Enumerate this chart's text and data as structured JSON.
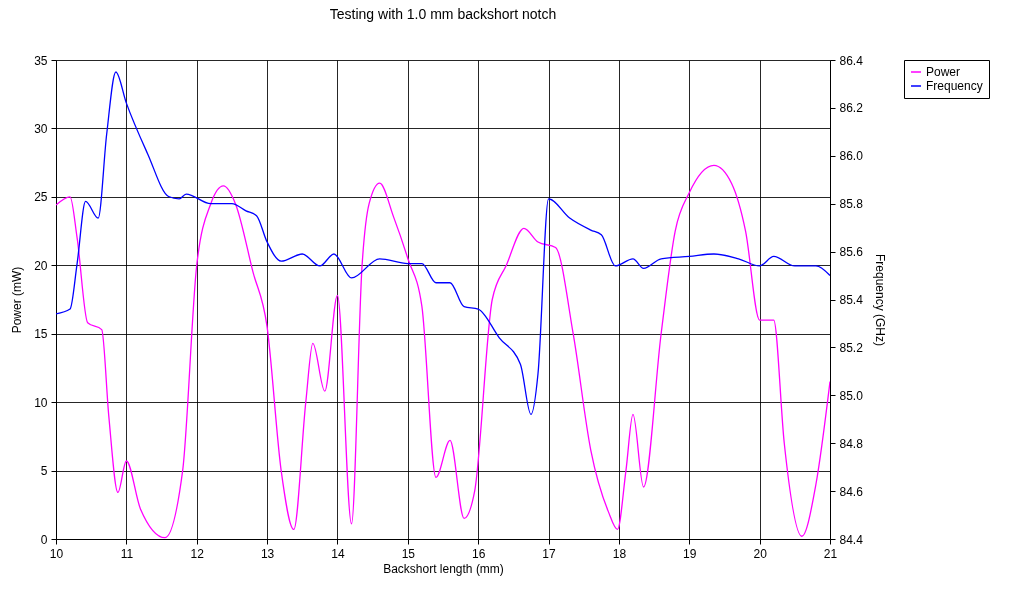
{
  "chart_data": {
    "type": "line",
    "title": "Testing with 1.0 mm backshort notch",
    "xlabel": "Backshort length (mm)",
    "ylabel": "Power (mW)",
    "y2label": "Frequency (GHz)",
    "xlim": [
      10,
      21
    ],
    "xticks": [
      10,
      11,
      12,
      13,
      14,
      15,
      16,
      17,
      18,
      19,
      20,
      21
    ],
    "ylim": [
      0,
      35
    ],
    "yticks": [
      0,
      5,
      10,
      15,
      20,
      25,
      30,
      35
    ],
    "y2lim": [
      84.4,
      86.4
    ],
    "y2ticks": [
      84.4,
      84.6,
      84.8,
      {
        "value": 85,
        "label": "85.0"
      },
      85.2,
      85.4,
      85.6,
      85.8,
      {
        "value": 86,
        "label": "86.0"
      },
      86.2,
      86.4
    ],
    "grid": true,
    "legend": "right",
    "marker": "none",
    "line_style": "solid",
    "series": [
      {
        "name": "Power",
        "color": "#ff00ff",
        "x": [
          10.0,
          10.2,
          10.3,
          10.45,
          10.65,
          10.75,
          10.88,
          11.0,
          11.2,
          11.55,
          11.8,
          12.0,
          12.2,
          12.38,
          12.55,
          12.8,
          13.0,
          13.2,
          13.38,
          13.55,
          13.65,
          13.82,
          14.0,
          14.2,
          14.35,
          14.45,
          14.6,
          14.8,
          15.0,
          15.2,
          15.4,
          15.6,
          15.8,
          15.95,
          16.2,
          16.4,
          16.65,
          16.85,
          17.1,
          17.35,
          17.6,
          17.85,
          17.98,
          18.1,
          18.2,
          18.35,
          18.6,
          18.8,
          19.0,
          19.35,
          19.6,
          19.8,
          20.0,
          20.2,
          20.35,
          20.6,
          20.8,
          21.0
        ],
        "values": [
          24.4,
          25.0,
          22,
          15.8,
          15.3,
          9,
          3.4,
          5.7,
          2.2,
          0.1,
          5,
          20,
          24.5,
          25.8,
          24.5,
          19.5,
          15.5,
          5,
          0.7,
          10,
          14.3,
          10.8,
          17.8,
          1.1,
          20,
          24.5,
          26,
          23.5,
          20.5,
          17,
          4.5,
          7.2,
          1.5,
          3.5,
          17.5,
          20,
          22.7,
          21.7,
          21.3,
          15,
          6.5,
          2,
          0.7,
          5,
          9.1,
          3.8,
          15,
          22.5,
          25.3,
          27.3,
          26,
          22.5,
          16,
          16,
          7,
          0.2,
          4,
          11.5
        ]
      },
      {
        "name": "Frequency",
        "color": "#0000ff",
        "axis": "y2",
        "x": [
          10.0,
          10.2,
          10.3,
          10.42,
          10.6,
          10.72,
          10.85,
          11.0,
          11.3,
          11.6,
          11.75,
          11.85,
          12.2,
          12.5,
          12.7,
          12.85,
          13.0,
          13.2,
          13.5,
          13.75,
          13.95,
          14.2,
          14.6,
          15.0,
          15.2,
          15.4,
          15.6,
          15.8,
          16.0,
          16.3,
          16.6,
          16.75,
          16.85,
          17.0,
          17.3,
          17.6,
          17.75,
          17.95,
          18.2,
          18.35,
          18.6,
          19.0,
          19.35,
          19.7,
          20.0,
          20.2,
          20.5,
          20.8,
          21.0
        ],
        "values": [
          85.34,
          85.36,
          85.55,
          85.81,
          85.74,
          86.09,
          86.35,
          86.22,
          86.01,
          85.83,
          85.82,
          85.84,
          85.8,
          85.8,
          85.77,
          85.75,
          85.64,
          85.56,
          85.59,
          85.54,
          85.59,
          85.49,
          85.57,
          85.55,
          85.55,
          85.47,
          85.47,
          85.37,
          85.36,
          85.24,
          85.13,
          84.92,
          85.09,
          85.82,
          85.74,
          85.69,
          85.67,
          85.54,
          85.57,
          85.53,
          85.57,
          85.58,
          85.59,
          85.57,
          85.54,
          85.58,
          85.54,
          85.54,
          85.5
        ]
      }
    ]
  }
}
